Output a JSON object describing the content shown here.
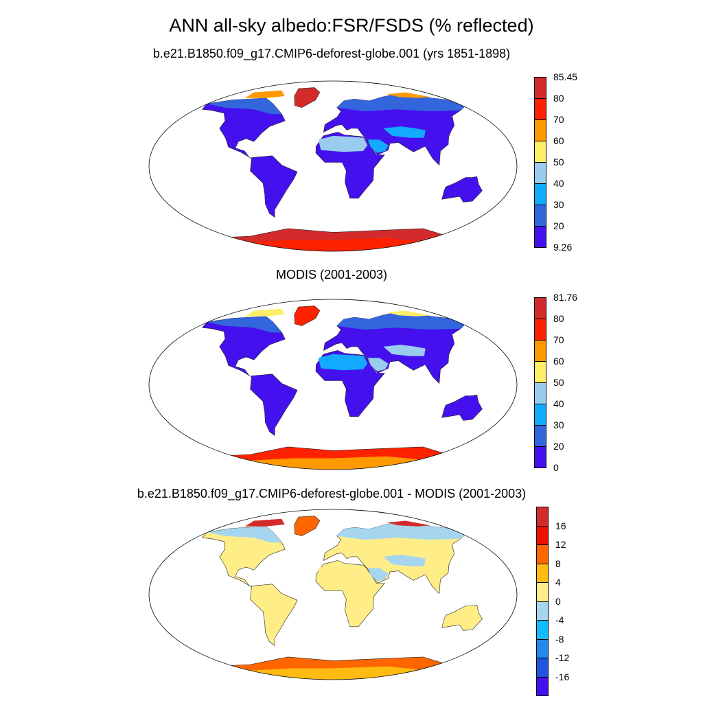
{
  "title": "ANN all-sky albedo:FSR/FSDS (% reflected)",
  "panels": [
    {
      "subtitle": "b.e21.B1850.f09_g17.CMIP6-deforest-globe.001 (yrs 1851-1898)",
      "colorbar": {
        "labels": [
          "85.45",
          "80",
          "70",
          "60",
          "50",
          "40",
          "30",
          "20",
          "9.26"
        ],
        "colors": [
          "#d32b2b",
          "#ff2200",
          "#ff9900",
          "#ffee66",
          "#99ccee",
          "#11aaff",
          "#3366dd",
          "#4411ee"
        ]
      }
    },
    {
      "subtitle": "MODIS (2001-2003)",
      "colorbar": {
        "labels": [
          "81.76",
          "80",
          "70",
          "60",
          "50",
          "40",
          "30",
          "20",
          "0"
        ],
        "colors": [
          "#d32b2b",
          "#ff2200",
          "#ff9900",
          "#ffee66",
          "#99ccee",
          "#11aaff",
          "#3366dd",
          "#4411ee"
        ]
      }
    },
    {
      "subtitle": "b.e21.B1850.f09_g17.CMIP6-deforest-globe.001 - MODIS (2001-2003)",
      "colorbar": {
        "labels": [
          "16",
          "12",
          "8",
          "4",
          "0",
          "-4",
          "-8",
          "-12",
          "-16"
        ],
        "colors": [
          "#d32b2b",
          "#ee1100",
          "#ff6600",
          "#ffbb11",
          "#ffee88",
          "#a6d6ef",
          "#11bbff",
          "#2288ee",
          "#2255dd",
          "#4411ee"
        ]
      }
    }
  ]
}
